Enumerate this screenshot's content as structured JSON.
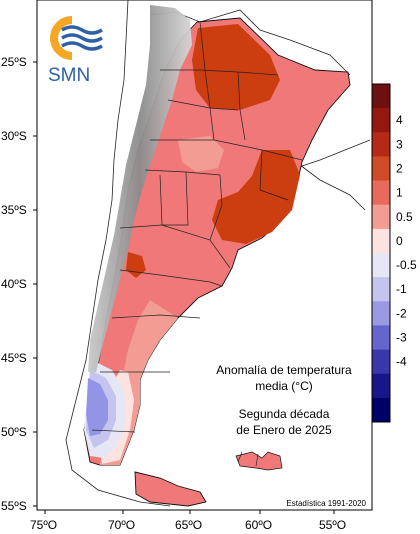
{
  "logo": {
    "text": "SMN"
  },
  "map": {
    "title_line1": "Anomalía de temperatura",
    "title_line2": "media (°C)",
    "period_line1": "Segunda década",
    "period_line2": "de Enero de 2025",
    "source": "Estadística 1991-2020",
    "lat_labels": [
      "25ºS",
      "30ºS",
      "35ºS",
      "40ºS",
      "45ºS",
      "50ºS",
      "55ºS"
    ],
    "lon_labels": [
      "75ºO",
      "70ºO",
      "65ºO",
      "60ºO",
      "55ºO"
    ]
  },
  "legend": {
    "bins": [
      {
        "color": "#6e1010"
      },
      {
        "color": "#951712"
      },
      {
        "color": "#b52a14"
      },
      {
        "color": "#cf4b28"
      },
      {
        "color": "#e86a5c"
      },
      {
        "color": "#f39c94"
      },
      {
        "color": "#fde3df"
      },
      {
        "color": "#e6e6f4"
      },
      {
        "color": "#c4c4ee"
      },
      {
        "color": "#9a9ae2"
      },
      {
        "color": "#6565ce"
      },
      {
        "color": "#3838a8"
      },
      {
        "color": "#17178a"
      },
      {
        "color": "#000066"
      }
    ],
    "labels": [
      "4",
      "3",
      "2",
      "1",
      "0.5",
      "0",
      "-0.5",
      "-1",
      "-2",
      "-3",
      "-4"
    ]
  },
  "colors": {
    "anomaly_pos_1_2": "#f07878",
    "anomaly_pos_2_3": "#cc3d10",
    "anomaly_neg": "#9494e6",
    "andes_relief": "#9a9a9a",
    "border": "#111111",
    "logo_orange": "#f5a623",
    "logo_blue": "#2f5fa5"
  }
}
